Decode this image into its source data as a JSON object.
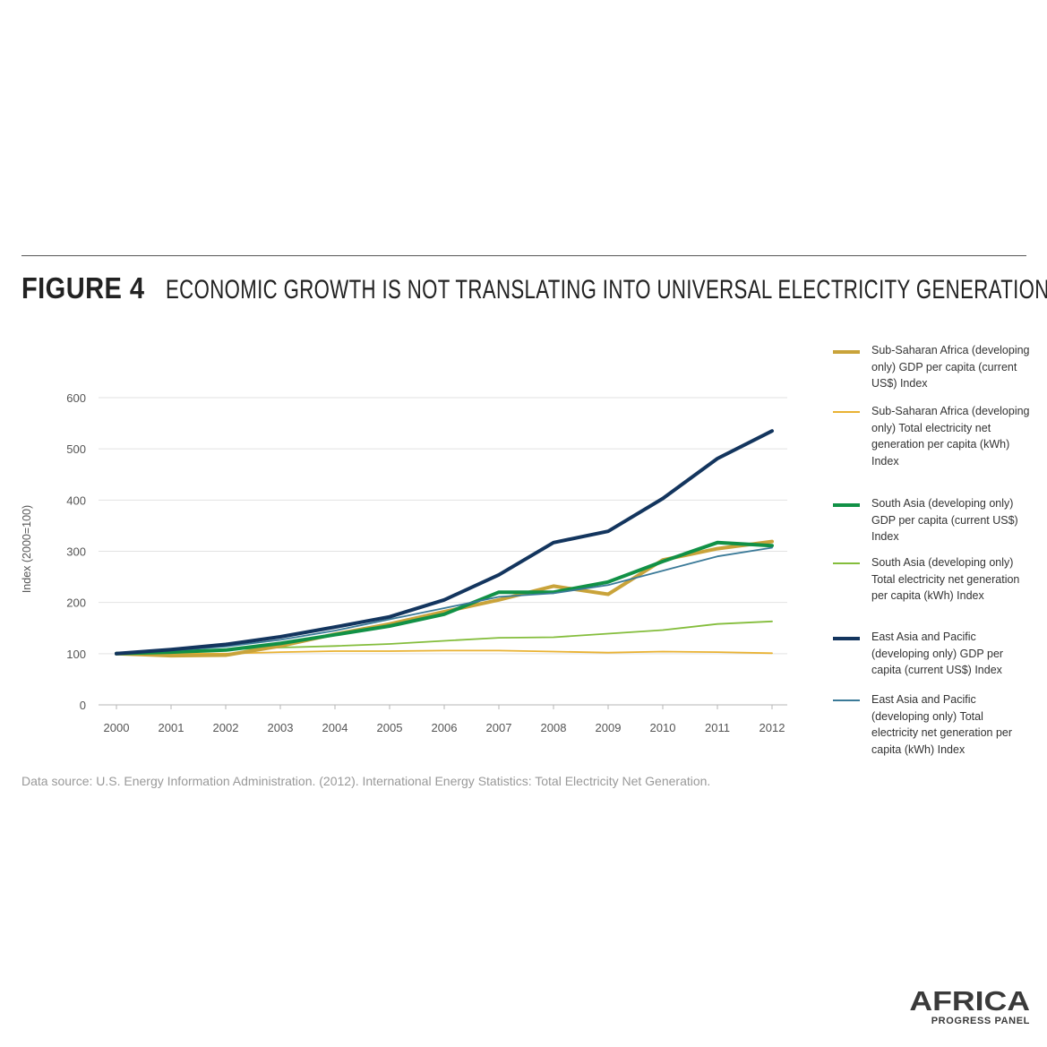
{
  "figure": {
    "label": "FIGURE 4",
    "title": "ECONOMIC GROWTH IS NOT TRANSLATING INTO UNIVERSAL ELECTRICITY GENERATION"
  },
  "source_note": "Data source: U.S. Energy Information Administration. (2012). International Energy Statistics: Total Electricity Net Generation.",
  "logo": {
    "main": "AFRICA",
    "sub": "PROGRESS PANEL"
  },
  "chart_data": {
    "type": "line",
    "title": "ECONOMIC GROWTH IS NOT TRANSLATING INTO UNIVERSAL ELECTRICITY GENERATION",
    "xlabel": "",
    "ylabel": "Index (2000=100)",
    "ylim": [
      0,
      600
    ],
    "yticks": [
      0,
      100,
      200,
      300,
      400,
      500,
      600
    ],
    "x": [
      "2000",
      "2001",
      "2002",
      "2003",
      "2004",
      "2005",
      "2006",
      "2007",
      "2008",
      "2009",
      "2010",
      "2011",
      "2012"
    ],
    "grid": true,
    "legend_position": "right",
    "series": [
      {
        "name": "Sub-Saharan Africa (developing only) GDP per capita (current US$) Index",
        "color": "#c9a33a",
        "width": 4,
        "values": [
          100,
          96,
          97,
          115,
          138,
          158,
          182,
          205,
          232,
          216,
          283,
          305,
          319
        ]
      },
      {
        "name": "Sub-Saharan Africa (developing only) Total electricity net generation per capita (kWh) Index",
        "color": "#e9b233",
        "width": 1.8,
        "values": [
          100,
          100,
          100,
          103,
          105,
          105,
          106,
          106,
          104,
          102,
          104,
          103,
          101
        ]
      },
      {
        "name": "South Asia (developing only) GDP per capita (current US$) Index",
        "color": "#119146",
        "width": 4,
        "values": [
          100,
          103,
          107,
          120,
          137,
          154,
          177,
          220,
          220,
          240,
          280,
          317,
          311
        ]
      },
      {
        "name": "South Asia (developing only) Total electricity net generation per capita (kWh) Index",
        "color": "#84bd3c",
        "width": 1.8,
        "values": [
          100,
          104,
          108,
          112,
          115,
          119,
          125,
          131,
          132,
          139,
          146,
          158,
          163
        ]
      },
      {
        "name": "East Asia and Pacific GDP per capita (current US$) Index",
        "color": "#13355e",
        "width": 4,
        "values": [
          100,
          108,
          118,
          133,
          152,
          172,
          205,
          254,
          317,
          339,
          403,
          481,
          535
        ]
      },
      {
        "name": "East Asia and Pacific (developing only) Total electricity net generation per capita (kWh) Index",
        "color": "#3b7a98",
        "width": 1.8,
        "values": [
          100,
          106,
          114,
          127,
          145,
          167,
          189,
          211,
          218,
          234,
          262,
          290,
          307
        ]
      }
    ]
  },
  "legend": [
    {
      "text": "Sub-Saharan Africa (developing only) GDP per capita (current US$) Index",
      "color": "#c9a33a",
      "thick": true
    },
    {
      "text": "Sub-Saharan Africa (developing only) Total electricity net generation per capita (kWh) Index",
      "color": "#e9b233",
      "thick": false
    },
    {
      "text": "South Asia (developing only) GDP per capita (current US$) Index",
      "color": "#119146",
      "thick": true
    },
    {
      "text": "South Asia (developing only) Total electricity net generation per capita (kWh) Index",
      "color": "#84bd3c",
      "thick": false
    },
    {
      "text": "East Asia and Pacific (developing only) GDP per capita (current US$) Index",
      "color": "#13355e",
      "thick": true
    },
    {
      "text": "East Asia and Pacific (developing only) Total electricity net generation per capita (kWh) Index",
      "color": "#3b7a98",
      "thick": false
    }
  ]
}
